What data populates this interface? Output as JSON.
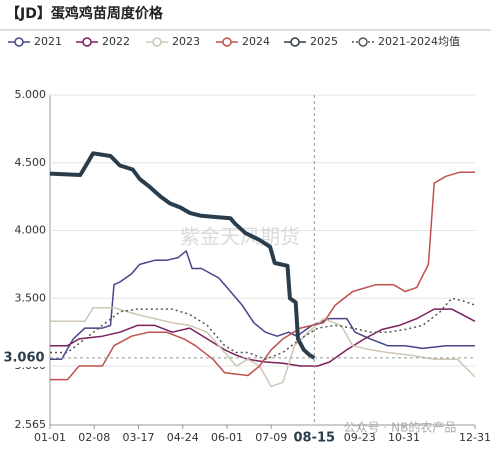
{
  "chart_data": {
    "type": "line",
    "title": "【JD】蛋鸡鸡苗周度价格",
    "xlim": [
      0,
      365
    ],
    "xticks": [
      {
        "value": 0,
        "label": "01-01"
      },
      {
        "value": 38,
        "label": "02-08"
      },
      {
        "value": 76,
        "label": "03-17"
      },
      {
        "value": 114,
        "label": "04-24"
      },
      {
        "value": 152,
        "label": "06-01"
      },
      {
        "value": 190,
        "label": "07-09"
      },
      {
        "value": 266,
        "label": "09-23"
      },
      {
        "value": 304,
        "label": "10-31"
      },
      {
        "value": 365,
        "label": "12-31"
      }
    ],
    "ylim": [
      2.565,
      5.0
    ],
    "yticks": [
      {
        "value": 2.565,
        "label": "2.565"
      },
      {
        "value": 3.0,
        "label": "3.000"
      },
      {
        "value": 3.5,
        "label": "3.500"
      },
      {
        "value": 4.0,
        "label": "4.000"
      },
      {
        "value": 4.5,
        "label": "4.500"
      },
      {
        "value": 5.0,
        "label": "5.000"
      }
    ],
    "grid": true,
    "series": [
      {
        "name": "2021",
        "color": "#45458a",
        "dashed": false,
        "width": 1.5,
        "x": [
          0,
          10,
          20,
          30,
          45,
          52,
          55,
          60,
          70,
          77,
          90,
          100,
          110,
          117,
          122,
          130,
          145,
          155,
          165,
          175,
          185,
          195,
          205,
          212,
          225,
          240,
          255,
          262,
          275,
          290,
          305,
          320,
          340,
          365
        ],
        "values": [
          3.05,
          3.05,
          3.2,
          3.28,
          3.28,
          3.3,
          3.6,
          3.62,
          3.68,
          3.75,
          3.78,
          3.78,
          3.8,
          3.85,
          3.72,
          3.72,
          3.65,
          3.55,
          3.45,
          3.32,
          3.25,
          3.22,
          3.25,
          3.22,
          3.3,
          3.35,
          3.35,
          3.25,
          3.2,
          3.15,
          3.15,
          3.13,
          3.15,
          3.15
        ]
      },
      {
        "name": "2022",
        "color": "#7b1f5e",
        "dashed": false,
        "width": 1.5,
        "x": [
          0,
          15,
          25,
          45,
          60,
          75,
          90,
          105,
          120,
          135,
          150,
          160,
          170,
          185,
          200,
          215,
          230,
          240,
          255,
          270,
          285,
          300,
          315,
          330,
          345,
          365
        ],
        "values": [
          3.15,
          3.15,
          3.2,
          3.22,
          3.25,
          3.3,
          3.3,
          3.25,
          3.28,
          3.2,
          3.12,
          3.08,
          3.05,
          3.03,
          3.02,
          3.0,
          3.0,
          3.03,
          3.12,
          3.2,
          3.27,
          3.3,
          3.35,
          3.42,
          3.42,
          3.33
        ]
      },
      {
        "name": "2023",
        "color": "#cfc6b6",
        "dashed": false,
        "width": 1.5,
        "x": [
          0,
          30,
          37,
          55,
          75,
          90,
          105,
          120,
          135,
          150,
          160,
          170,
          180,
          190,
          200,
          210,
          222,
          235,
          250,
          260,
          275,
          290,
          310,
          330,
          350,
          365
        ],
        "values": [
          3.33,
          3.33,
          3.43,
          3.43,
          3.38,
          3.35,
          3.32,
          3.3,
          3.25,
          3.1,
          3.0,
          3.05,
          3.0,
          2.85,
          2.88,
          3.15,
          3.25,
          3.35,
          3.3,
          3.15,
          3.12,
          3.1,
          3.08,
          3.05,
          3.05,
          2.92
        ]
      },
      {
        "name": "2024",
        "color": "#c0504d",
        "dashed": false,
        "width": 1.5,
        "x": [
          0,
          15,
          25,
          45,
          55,
          70,
          85,
          100,
          115,
          125,
          140,
          150,
          170,
          180,
          190,
          200,
          215,
          225,
          235,
          245,
          260,
          280,
          295,
          305,
          315,
          325,
          330,
          340,
          352,
          365
        ],
        "values": [
          2.9,
          2.9,
          3.0,
          3.0,
          3.15,
          3.22,
          3.25,
          3.25,
          3.2,
          3.15,
          3.05,
          2.95,
          2.93,
          3.0,
          3.12,
          3.2,
          3.28,
          3.3,
          3.32,
          3.45,
          3.55,
          3.6,
          3.6,
          3.55,
          3.58,
          3.75,
          4.35,
          4.4,
          4.43,
          4.43
        ]
      },
      {
        "name": "2025",
        "color": "#2b3d4b",
        "dashed": false,
        "width": 4,
        "x": [
          0,
          26,
          37,
          52,
          60,
          71,
          77,
          86,
          95,
          103,
          112,
          120,
          129,
          142,
          155,
          159,
          168,
          180,
          189,
          193,
          204,
          206,
          211,
          213,
          218,
          223,
          227
        ],
        "values": [
          4.42,
          4.41,
          4.57,
          4.55,
          4.48,
          4.45,
          4.38,
          4.32,
          4.25,
          4.2,
          4.17,
          4.13,
          4.11,
          4.1,
          4.09,
          4.05,
          3.98,
          3.93,
          3.88,
          3.76,
          3.74,
          3.5,
          3.47,
          3.2,
          3.12,
          3.08,
          3.06
        ]
      },
      {
        "name": "2021-2024均值",
        "color": "#555555",
        "dashed": true,
        "width": 1.5,
        "x": [
          0,
          15,
          30,
          45,
          60,
          75,
          90,
          105,
          120,
          135,
          150,
          160,
          170,
          185,
          200,
          215,
          230,
          245,
          260,
          275,
          290,
          305,
          320,
          335,
          345,
          355,
          365
        ],
        "values": [
          3.1,
          3.1,
          3.2,
          3.3,
          3.4,
          3.42,
          3.42,
          3.42,
          3.38,
          3.3,
          3.15,
          3.1,
          3.1,
          3.05,
          3.1,
          3.2,
          3.28,
          3.3,
          3.28,
          3.25,
          3.25,
          3.27,
          3.3,
          3.4,
          3.5,
          3.48,
          3.45
        ]
      }
    ],
    "crosshair": {
      "x": 227,
      "y": 3.06,
      "x_label": "08-15",
      "y_label": "3.060"
    },
    "watermarks": [
      "紫金天风期货",
      "公众号 · NB的农产品"
    ]
  }
}
